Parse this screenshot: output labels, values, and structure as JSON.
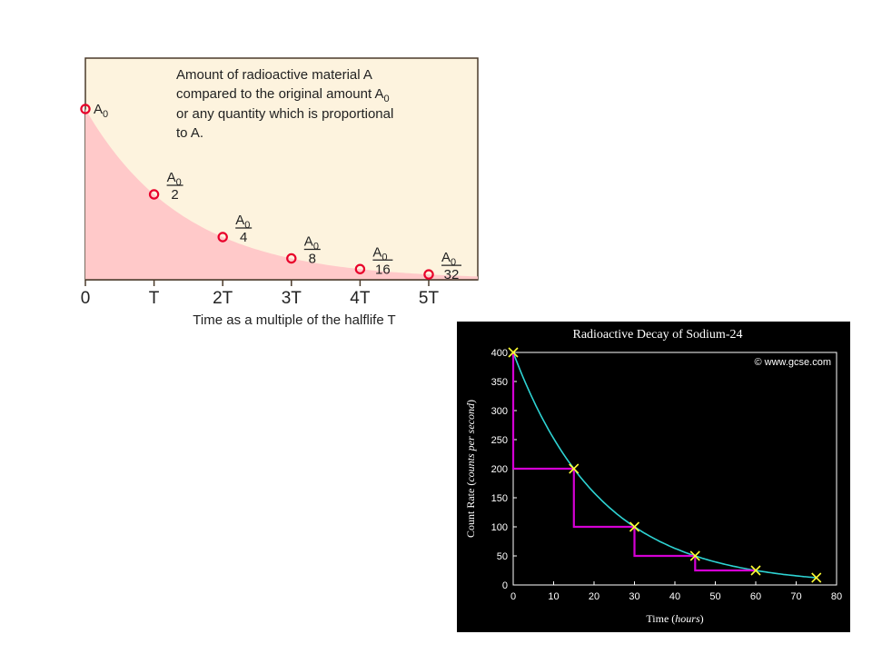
{
  "colors": {
    "left_background": "#fdf3de",
    "left_frame": "#4a3a2a",
    "left_fill": "#ffc9c9",
    "left_marker": "#e8002a",
    "right_background": "#000000",
    "right_axis": "#ffffff",
    "right_curve": "#2ed3d3",
    "right_steps": "#d400d4",
    "right_marker": "#ffff33"
  },
  "chart_data": [
    {
      "type": "area",
      "annotation": [
        "Amount of radioactive material A",
        "compared to the original amount A",
        "or any quantity which is proportional",
        "to A."
      ],
      "annotation_subscript": "0",
      "xlabel": "Time as a multiple of the halflife T",
      "x_ticks": [
        "0",
        "T",
        "2T",
        "3T",
        "4T",
        "5T"
      ],
      "x": [
        0,
        1,
        2,
        3,
        4,
        5
      ],
      "values": [
        1,
        0.5,
        0.25,
        0.125,
        0.0625,
        0.03125
      ],
      "point_labels": [
        {
          "symbol": "A",
          "sub": "0",
          "den": ""
        },
        {
          "symbol": "A",
          "sub": "0",
          "den": "2"
        },
        {
          "symbol": "A",
          "sub": "0",
          "den": "4"
        },
        {
          "symbol": "A",
          "sub": "0",
          "den": "8"
        },
        {
          "symbol": "A",
          "sub": "0",
          "den": "16"
        },
        {
          "symbol": "A",
          "sub": "0",
          "den": "32"
        }
      ]
    },
    {
      "type": "line",
      "title": "Radioactive Decay of Sodium-24",
      "copyright": "© www.gcse.com",
      "xlabel_prefix": "Time (",
      "xlabel_italic": "hours",
      "xlabel_suffix": ")",
      "ylabel_prefix": "Count Rate (",
      "ylabel_italic": "counts per second",
      "ylabel_suffix": ")",
      "xlim": [
        0,
        80
      ],
      "ylim": [
        0,
        400
      ],
      "x_ticks": [
        0,
        10,
        20,
        30,
        40,
        50,
        60,
        70,
        80
      ],
      "y_ticks": [
        0,
        50,
        100,
        150,
        200,
        250,
        300,
        350,
        400
      ],
      "points": {
        "x": [
          0,
          15,
          30,
          45,
          60,
          75
        ],
        "y": [
          400,
          200,
          100,
          50,
          25,
          12.5
        ]
      },
      "half_life_steps": [
        [
          0,
          400
        ],
        [
          0,
          200
        ],
        [
          15,
          200
        ],
        [
          15,
          100
        ],
        [
          30,
          100
        ],
        [
          30,
          50
        ],
        [
          45,
          50
        ],
        [
          45,
          25
        ],
        [
          60,
          25
        ]
      ]
    }
  ]
}
